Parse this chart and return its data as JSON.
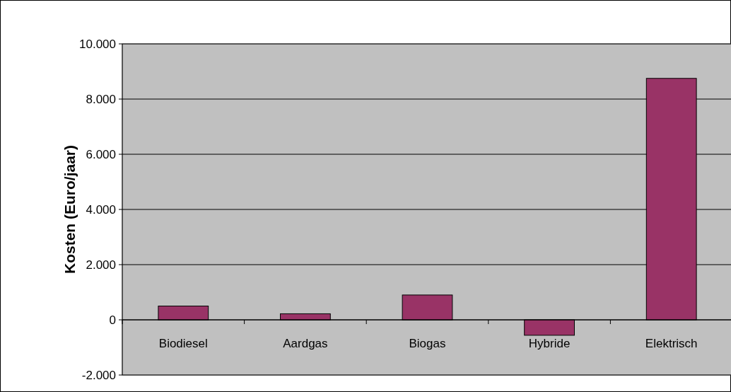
{
  "chart_data": {
    "type": "bar",
    "ylabel": "Kosten (Euro/jaar)",
    "categories": [
      "Biodiesel",
      "Aardgas",
      "Biogas",
      "Hybride",
      "Elektrisch"
    ],
    "values": [
      500,
      220,
      900,
      -560,
      8750
    ],
    "color": "#993366",
    "ylim": [
      -2000,
      10000
    ],
    "yticks": [
      {
        "value": -2000,
        "label": "-2.000"
      },
      0,
      {
        "value": 2000,
        "label": "2.000"
      },
      {
        "value": 4000,
        "label": "4.000"
      },
      {
        "value": 6000,
        "label": "6.000"
      },
      {
        "value": 8000,
        "label": "8.000"
      },
      {
        "value": 10000,
        "label": "10.000"
      }
    ],
    "grid": "y"
  }
}
